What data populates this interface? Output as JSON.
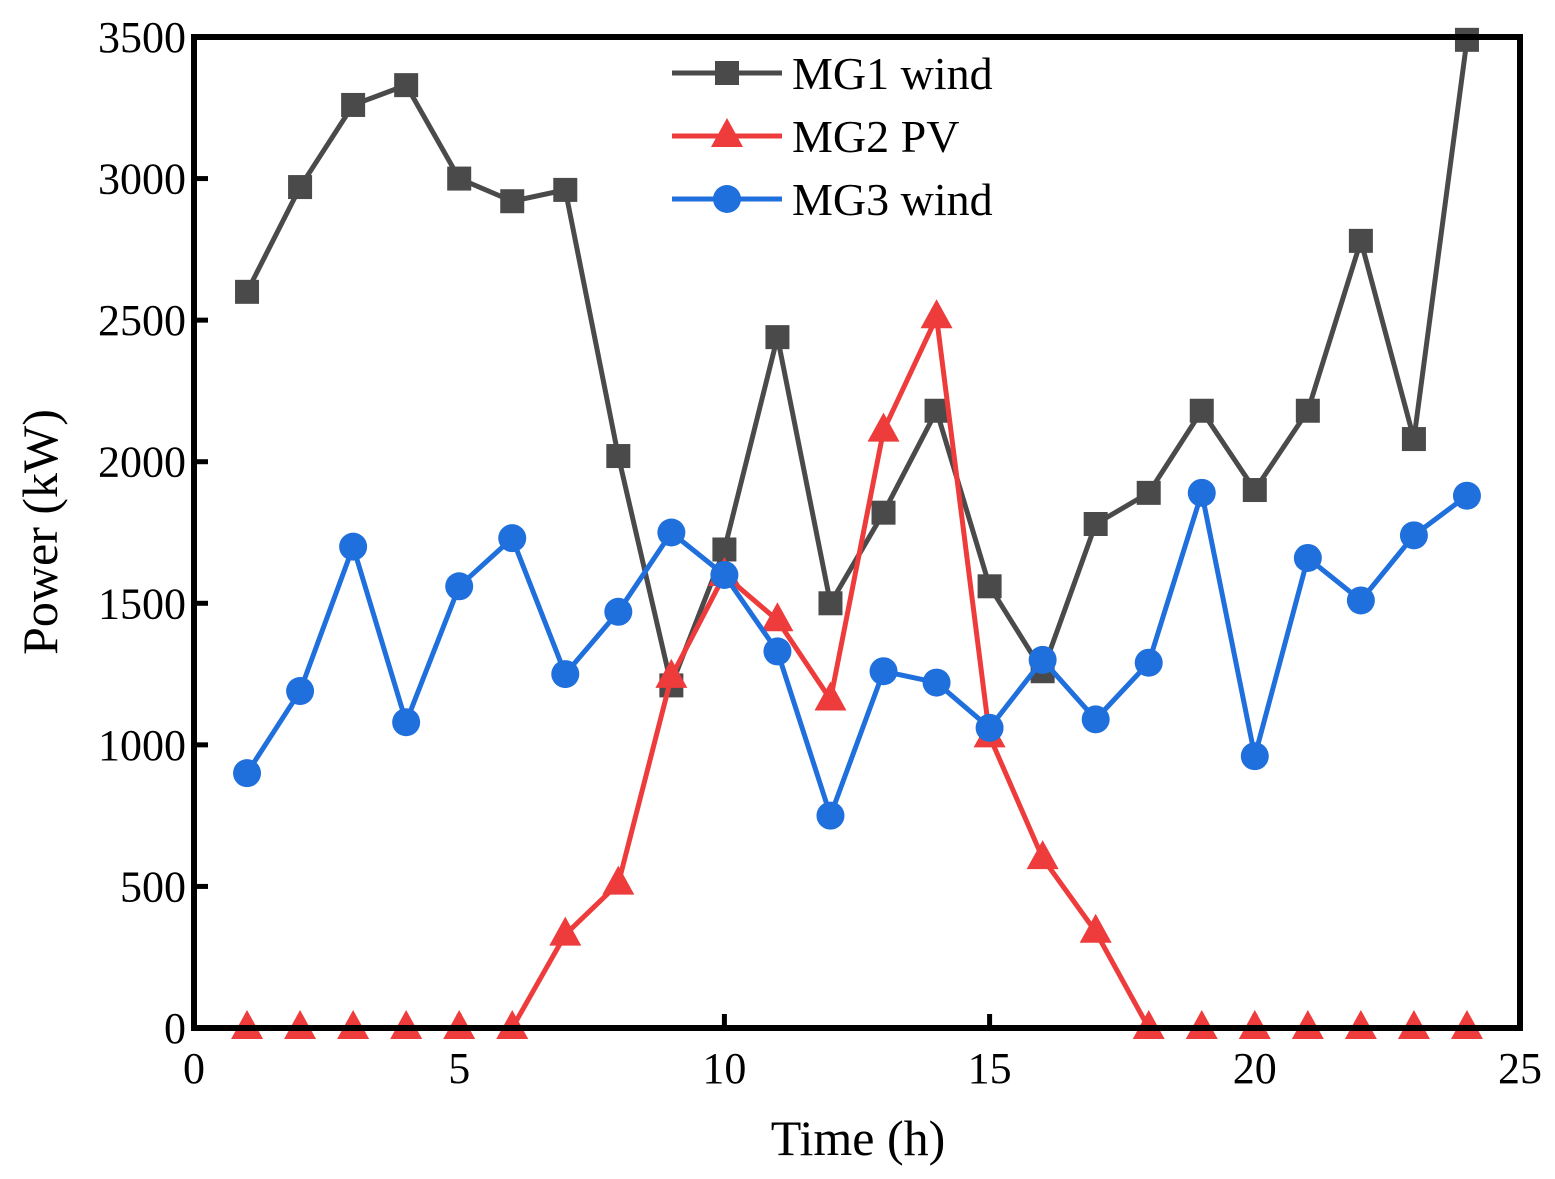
{
  "chart_data": {
    "type": "line",
    "title": "",
    "xlabel": "Time (h)",
    "ylabel": "Power (kW)",
    "xlim": [
      0,
      25
    ],
    "ylim": [
      0,
      3500
    ],
    "xticks": [
      0,
      5,
      10,
      15,
      20,
      25
    ],
    "yticks": [
      0,
      500,
      1000,
      1500,
      2000,
      2500,
      3000,
      3500
    ],
    "grid": false,
    "legend_position": "top-center",
    "x": [
      1,
      2,
      3,
      4,
      5,
      6,
      7,
      8,
      9,
      10,
      11,
      12,
      13,
      14,
      15,
      16,
      17,
      18,
      19,
      20,
      21,
      22,
      23,
      24
    ],
    "series": [
      {
        "name": "MG1 wind",
        "color": "#4a4a4a",
        "marker": "square",
        "values": [
          2600,
          2970,
          3260,
          3330,
          3000,
          2920,
          2960,
          2020,
          1210,
          1690,
          2440,
          1500,
          1820,
          2180,
          1560,
          1260,
          1780,
          1890,
          2180,
          1900,
          2180,
          2780,
          2080,
          3490
        ]
      },
      {
        "name": "MG2 PV",
        "color": "#ee3b3b",
        "marker": "triangle",
        "values": [
          0,
          0,
          0,
          0,
          0,
          0,
          330,
          510,
          1240,
          1600,
          1440,
          1160,
          2110,
          2510,
          1030,
          600,
          340,
          0,
          0,
          0,
          0,
          0,
          0,
          0
        ]
      },
      {
        "name": "MG3 wind",
        "color": "#1f6fdc",
        "marker": "circle",
        "values": [
          900,
          1190,
          1700,
          1080,
          1560,
          1730,
          1250,
          1470,
          1750,
          1600,
          1330,
          750,
          1260,
          1220,
          1060,
          1300,
          1090,
          1290,
          1890,
          960,
          1660,
          1510,
          1740,
          1880
        ]
      }
    ]
  }
}
